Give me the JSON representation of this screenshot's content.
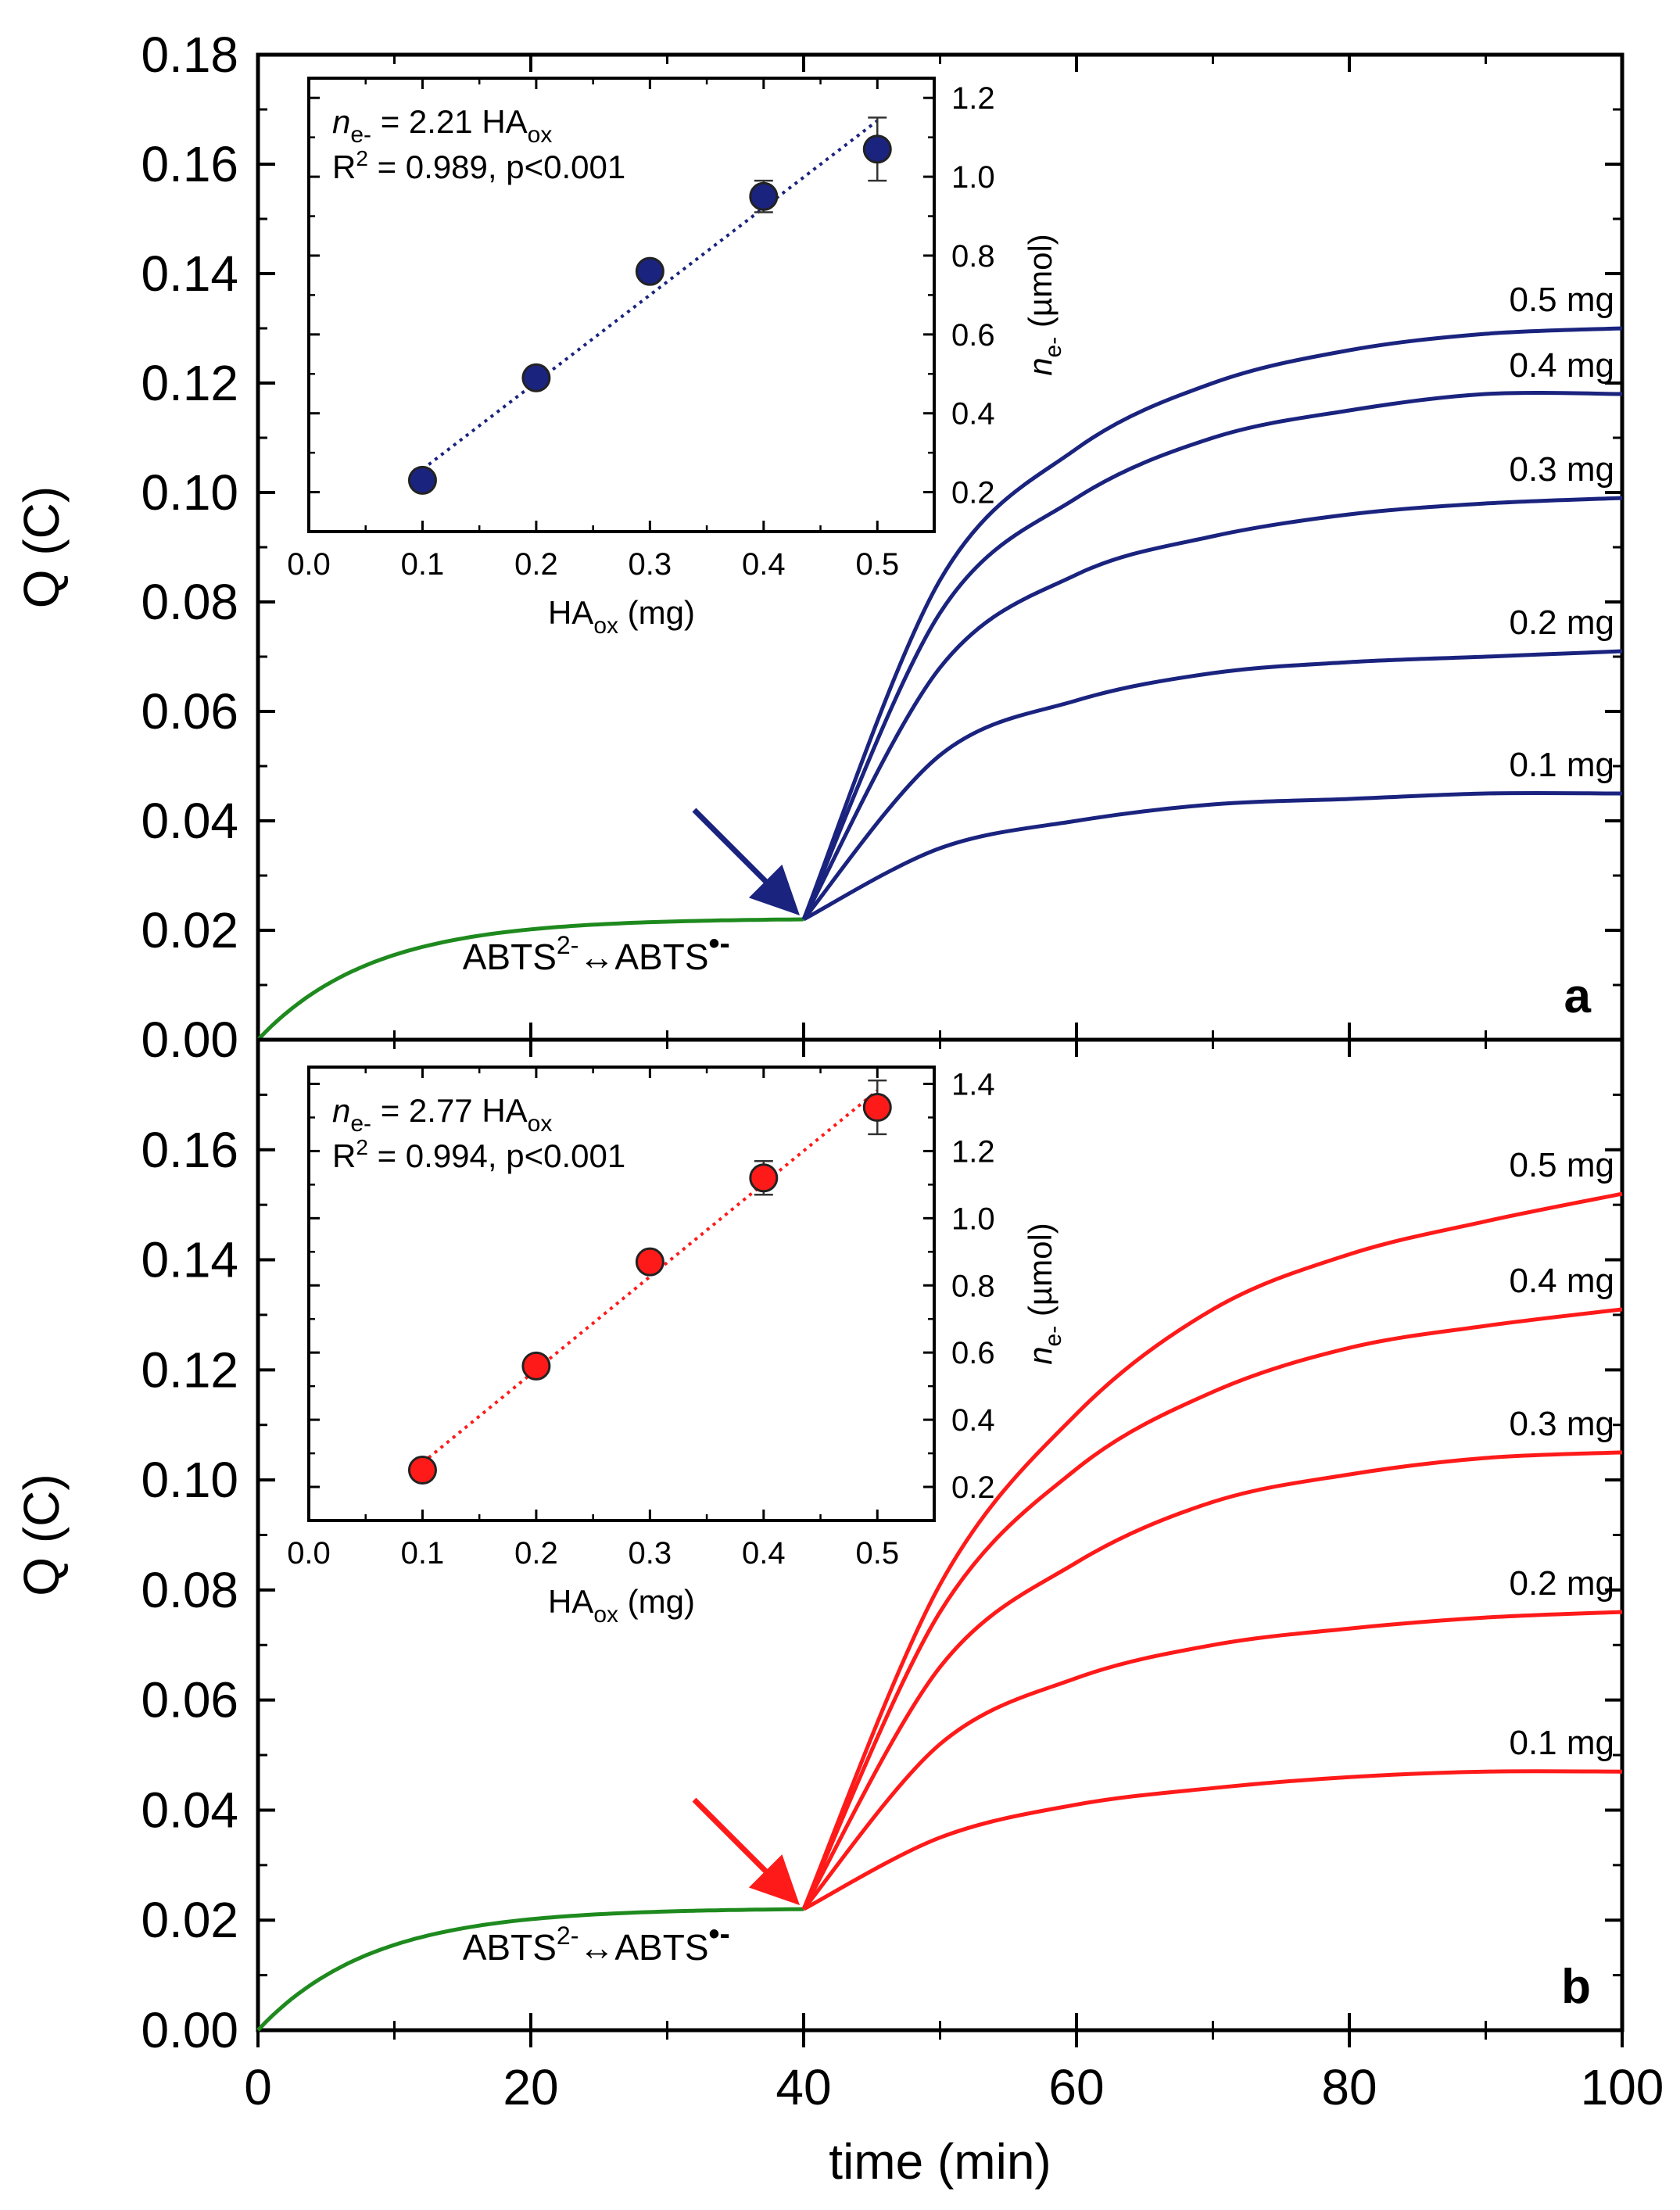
{
  "chart_data": {
    "type": "line",
    "xlabel": "time (min)",
    "ylabel": "Q (C)",
    "xlim": [
      0,
      100
    ],
    "ylim": [
      0,
      0.18
    ],
    "x_ticks": [
      "0",
      "20",
      "40",
      "60",
      "80",
      "100"
    ],
    "y_ticks_a": [
      "0.00",
      "0.02",
      "0.04",
      "0.06",
      "0.08",
      "0.10",
      "0.12",
      "0.14",
      "0.16",
      "0.18"
    ],
    "y_ticks_b": [
      "0.00",
      "0.02",
      "0.04",
      "0.06",
      "0.08",
      "0.10",
      "0.12",
      "0.14",
      "0.16"
    ],
    "inset_xlabel_main": "HA",
    "inset_xlabel_sub": "ox",
    "inset_xlabel_unit": " (mg)",
    "inset_ylabel_main": "n",
    "inset_ylabel_sub": "e-",
    "inset_ylabel_unit": " (µmol)",
    "inset_x_ticks": [
      "0.0",
      "0.1",
      "0.2",
      "0.3",
      "0.4",
      "0.5"
    ],
    "baseline_label_pre": "ABTS",
    "baseline_label_sup1": "2-",
    "baseline_label_arrow": "↔",
    "baseline_label_mid": "ABTS",
    "baseline_label_sup2": "•-",
    "panels": [
      {
        "letter": "a",
        "color": "#1a237e",
        "baseline_color": "#1e8a1e",
        "baseline": {
          "t_start": 0,
          "t_end": 40,
          "q_end": 0.022
        },
        "series": [
          {
            "name": "0.5 mg",
            "x": [
              40,
              50,
              60,
              70,
              80,
              90,
              100
            ],
            "values": [
              0.022,
              0.084,
              0.108,
              0.12,
              0.126,
              0.129,
              0.13
            ]
          },
          {
            "name": "0.4 mg",
            "x": [
              40,
              50,
              60,
              70,
              80,
              90,
              100
            ],
            "values": [
              0.022,
              0.078,
              0.099,
              0.11,
              0.115,
              0.118,
              0.118
            ]
          },
          {
            "name": "0.3 mg",
            "x": [
              40,
              50,
              60,
              70,
              80,
              90,
              100
            ],
            "values": [
              0.022,
              0.068,
              0.085,
              0.092,
              0.096,
              0.098,
              0.099
            ]
          },
          {
            "name": "0.2 mg",
            "x": [
              40,
              50,
              60,
              70,
              80,
              90,
              100
            ],
            "values": [
              0.022,
              0.052,
              0.062,
              0.067,
              0.069,
              0.07,
              0.071
            ]
          },
          {
            "name": "0.1 mg",
            "x": [
              40,
              50,
              60,
              70,
              80,
              90,
              100
            ],
            "values": [
              0.022,
              0.035,
              0.04,
              0.043,
              0.044,
              0.045,
              0.045
            ]
          }
        ],
        "inset": {
          "x": [
            0.1,
            0.2,
            0.3,
            0.4,
            0.5
          ],
          "values": [
            0.23,
            0.49,
            0.76,
            0.95,
            1.07
          ],
          "errors": [
            0.02,
            0.02,
            0.02,
            0.04,
            0.08
          ],
          "fit_slope": 2.21,
          "xlim": [
            0,
            0.55
          ],
          "ylim": [
            0.1,
            1.25
          ],
          "y_ticks": [
            "0.2",
            "0.4",
            "0.6",
            "0.8",
            "1.0",
            "1.2"
          ],
          "eq_n": "n",
          "eq_sub": "e-",
          "eq_rest": " = 2.21 HA",
          "eq_sub2": "ox",
          "r2_pre": "R",
          "r2_sup": "2",
          "r2_rest": " = 0.989, p<0.001"
        }
      },
      {
        "letter": "b",
        "color": "#ff1a1a",
        "baseline_color": "#1e8a1e",
        "baseline": {
          "t_start": 0,
          "t_end": 40,
          "q_end": 0.022
        },
        "series": [
          {
            "name": "0.5 mg",
            "x": [
              40,
              50,
              60,
              70,
              80,
              90,
              100
            ],
            "values": [
              0.022,
              0.081,
              0.112,
              0.131,
              0.141,
              0.147,
              0.152
            ]
          },
          {
            "name": "0.4 mg",
            "x": [
              40,
              50,
              60,
              70,
              80,
              90,
              100
            ],
            "values": [
              0.022,
              0.076,
              0.102,
              0.116,
              0.124,
              0.128,
              0.131
            ]
          },
          {
            "name": "0.3 mg",
            "x": [
              40,
              50,
              60,
              70,
              80,
              90,
              100
            ],
            "values": [
              0.022,
              0.066,
              0.085,
              0.096,
              0.101,
              0.104,
              0.105
            ]
          },
          {
            "name": "0.2 mg",
            "x": [
              40,
              50,
              60,
              70,
              80,
              90,
              100
            ],
            "values": [
              0.022,
              0.052,
              0.064,
              0.07,
              0.073,
              0.075,
              0.076
            ]
          },
          {
            "name": "0.1 mg",
            "x": [
              40,
              50,
              60,
              70,
              80,
              90,
              100
            ],
            "values": [
              0.022,
              0.035,
              0.041,
              0.044,
              0.046,
              0.047,
              0.047
            ]
          }
        ],
        "inset": {
          "x": [
            0.1,
            0.2,
            0.3,
            0.4,
            0.5
          ],
          "values": [
            0.25,
            0.56,
            0.87,
            1.12,
            1.33
          ],
          "errors": [
            0.03,
            0.03,
            0.02,
            0.05,
            0.08
          ],
          "fit_slope": 2.77,
          "xlim": [
            0,
            0.55
          ],
          "ylim": [
            0.1,
            1.45
          ],
          "y_ticks": [
            "0.2",
            "0.4",
            "0.6",
            "0.8",
            "1.0",
            "1.2",
            "1.4"
          ],
          "eq_n": "n",
          "eq_sub": "e-",
          "eq_rest": " = 2.77 HA",
          "eq_sub2": "ox",
          "r2_pre": "R",
          "r2_sup": "2",
          "r2_rest": " = 0.994, p<0.001"
        }
      }
    ]
  }
}
